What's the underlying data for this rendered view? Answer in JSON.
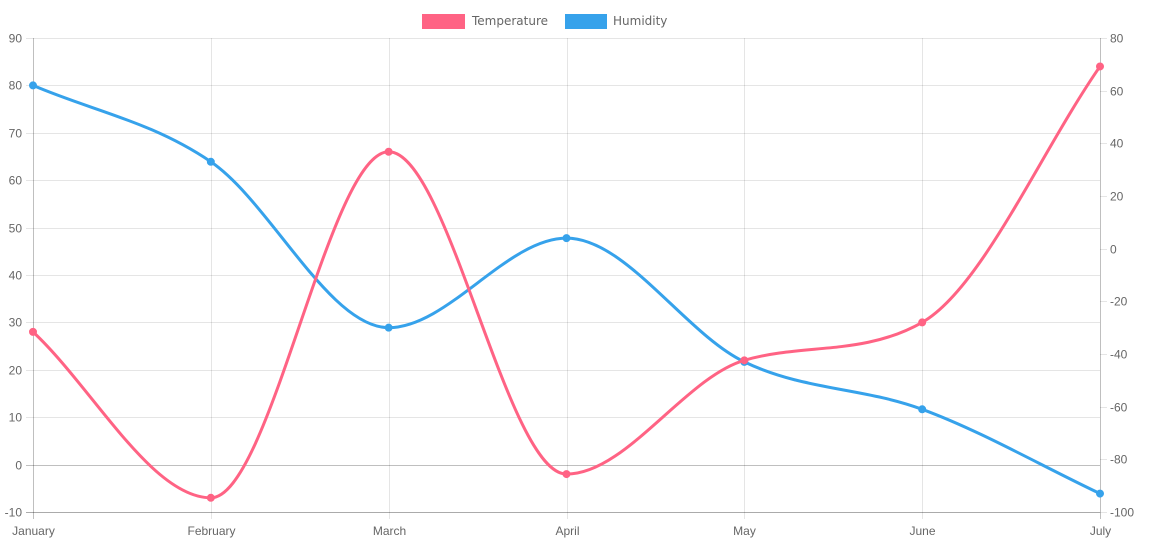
{
  "chart_data": {
    "type": "line",
    "categories": [
      "January",
      "February",
      "March",
      "April",
      "May",
      "June",
      "July"
    ],
    "series": [
      {
        "name": "Temperature",
        "values": [
          28,
          -7,
          66,
          -2,
          22,
          30,
          84
        ],
        "axis": "left",
        "color": "#ff6384"
      },
      {
        "name": "Humidity",
        "values": [
          62,
          33,
          -30,
          4,
          -43,
          -61,
          -93
        ],
        "axis": "right",
        "color": "#36a2eb"
      }
    ],
    "y_left": {
      "min": -10,
      "max": 90,
      "step": 10,
      "ticks": [
        90,
        80,
        70,
        60,
        50,
        40,
        30,
        20,
        10,
        0,
        -10
      ]
    },
    "y_right": {
      "min": -100,
      "max": 80,
      "step": 20,
      "ticks": [
        80,
        60,
        40,
        20,
        0,
        -20,
        -40,
        -60,
        -80,
        -100
      ]
    },
    "grid": true,
    "legend_position": "top",
    "curve": "smooth"
  }
}
